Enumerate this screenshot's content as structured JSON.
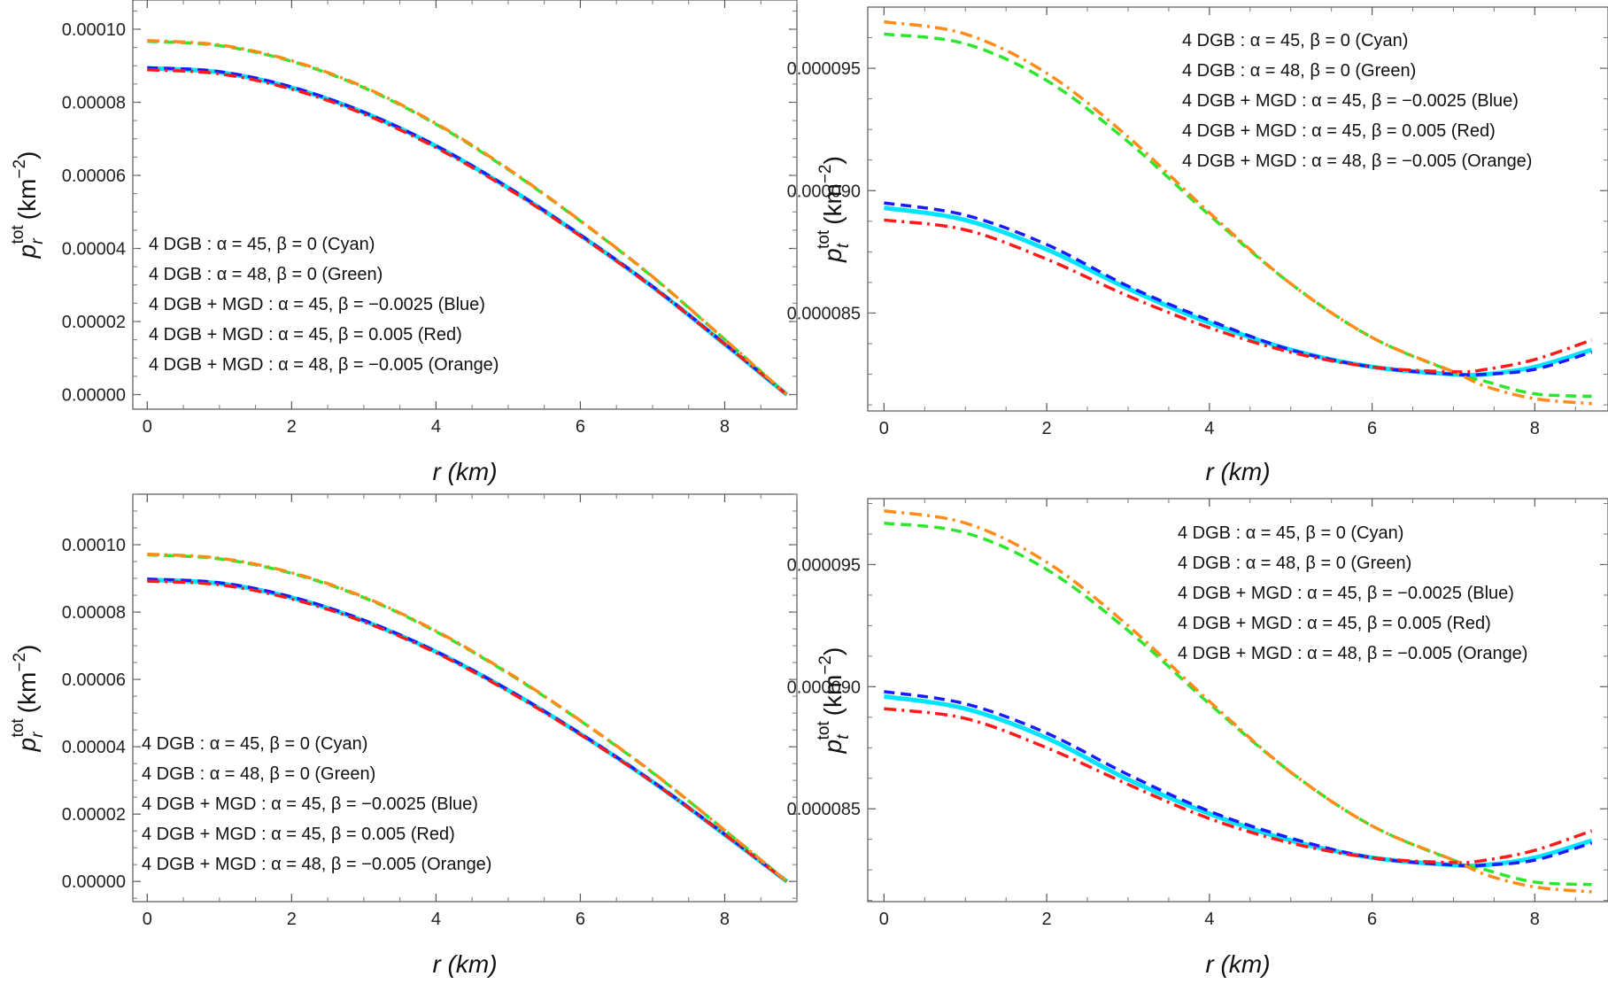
{
  "chart_data": [
    {
      "type": "line",
      "panel": "top-left",
      "xlabel": "r (km)",
      "ylabel": "p_r^tot (km^-2)",
      "xlim": [
        -0.2,
        9.0
      ],
      "ylim": [
        -4e-06,
        0.000108
      ],
      "xticks": [
        0,
        2,
        4,
        6,
        8
      ],
      "xtick_labels": [
        "0",
        "2",
        "4",
        "6",
        "8"
      ],
      "yticks": [
        0,
        2e-05,
        4e-05,
        6e-05,
        8e-05,
        0.0001
      ],
      "ytick_labels": [
        "0.00000",
        "0.00002",
        "0.00004",
        "0.00006",
        "0.00008",
        "0.00010"
      ],
      "legend_placement": "bottom-left",
      "legend": [
        "4 DGB : α = 45,  β = 0 (Cyan)",
        "4 DGB : α = 48,  β = 0 (Green)",
        "4 DGB + MGD : α = 45,  β = −0.0025 (Blue)",
        "4 DGB + MGD : α = 45,  β = 0.005 (Red)",
        "4 DGB + MGD : α = 48,  β = −0.005 (Orange)"
      ],
      "x": [
        0,
        1,
        2,
        3,
        4,
        5,
        6,
        7,
        8,
        8.86
      ],
      "series": [
        {
          "color": "#00e5ff",
          "style": "solid",
          "values": [
            8.93e-05,
            8.82e-05,
            8.4e-05,
            7.72e-05,
            6.8e-05,
            5.66e-05,
            4.36e-05,
            2.95e-05,
            1.38e-05,
            0.0
          ]
        },
        {
          "color": "#2ee62e",
          "style": "dashed",
          "values": [
            9.67e-05,
            9.55e-05,
            9.12e-05,
            8.4e-05,
            7.4e-05,
            6.16e-05,
            4.75e-05,
            3.22e-05,
            1.51e-05,
            0.0
          ]
        },
        {
          "color": "#1a1aff",
          "style": "dashed",
          "values": [
            8.95e-05,
            8.84e-05,
            8.42e-05,
            7.73e-05,
            6.81e-05,
            5.67e-05,
            4.37e-05,
            2.96e-05,
            1.39e-05,
            0.0
          ]
        },
        {
          "color": "#ff1a1a",
          "style": "dashdot",
          "values": [
            8.89e-05,
            8.78e-05,
            8.36e-05,
            7.68e-05,
            6.76e-05,
            5.63e-05,
            4.34e-05,
            2.94e-05,
            1.38e-05,
            0.0
          ]
        },
        {
          "color": "#ff8c1a",
          "style": "dashdot",
          "values": [
            9.69e-05,
            9.57e-05,
            9.14e-05,
            8.42e-05,
            7.42e-05,
            6.18e-05,
            4.76e-05,
            3.23e-05,
            1.51e-05,
            0.0
          ]
        }
      ]
    },
    {
      "type": "line",
      "panel": "top-right",
      "xlabel": "r (km)",
      "ylabel": "p_t^tot (km^-2)",
      "xlim": [
        -0.2,
        8.9
      ],
      "ylim": [
        8.1e-05,
        9.75e-05
      ],
      "xticks": [
        0,
        2,
        4,
        6,
        8
      ],
      "xtick_labels": [
        "0",
        "2",
        "4",
        "6",
        "8"
      ],
      "yticks": [
        8.5e-05,
        9e-05,
        9.5e-05
      ],
      "ytick_labels": [
        "0.000085",
        "0.000090",
        "0.000095"
      ],
      "legend_placement": "top-right",
      "legend": [
        "4 DGB : α = 45,  β = 0 (Cyan)",
        "4 DGB : α = 48,  β = 0 (Green)",
        "4 DGB + MGD : α = 45,  β = −0.0025 (Blue)",
        "4 DGB + MGD : α = 45,  β = 0.005 (Red)",
        "4 DGB + MGD : α = 48,  β = −0.005 (Orange)"
      ],
      "x": [
        0,
        1,
        2,
        3,
        4,
        5,
        6,
        7,
        7.4,
        8,
        8.7
      ],
      "series": [
        {
          "color": "#00e5ff",
          "style": "solid",
          "values": [
            8.93e-05,
            8.88e-05,
            8.76e-05,
            8.6e-05,
            8.46e-05,
            8.35e-05,
            8.28e-05,
            8.25e-05,
            8.25e-05,
            8.28e-05,
            8.35e-05
          ]
        },
        {
          "color": "#2ee62e",
          "style": "dashed",
          "values": [
            9.64e-05,
            9.6e-05,
            9.45e-05,
            9.2e-05,
            8.9e-05,
            8.62e-05,
            8.4e-05,
            8.26e-05,
            8.22e-05,
            8.17e-05,
            8.16e-05
          ]
        },
        {
          "color": "#1a1aff",
          "style": "dashed",
          "values": [
            8.95e-05,
            8.9e-05,
            8.78e-05,
            8.61e-05,
            8.47e-05,
            8.35e-05,
            8.28e-05,
            8.25e-05,
            8.25e-05,
            8.27e-05,
            8.34e-05
          ]
        },
        {
          "color": "#ff1a1a",
          "style": "dashdot",
          "values": [
            8.88e-05,
            8.84e-05,
            8.72e-05,
            8.57e-05,
            8.44e-05,
            8.34e-05,
            8.28e-05,
            8.26e-05,
            8.27e-05,
            8.31e-05,
            8.39e-05
          ]
        },
        {
          "color": "#ff8c1a",
          "style": "dashdot",
          "values": [
            9.69e-05,
            9.64e-05,
            9.48e-05,
            9.22e-05,
            8.91e-05,
            8.62e-05,
            8.4e-05,
            8.26e-05,
            8.2e-05,
            8.15e-05,
            8.13e-05
          ]
        }
      ]
    },
    {
      "type": "line",
      "panel": "bottom-left",
      "xlabel": "r (km)",
      "ylabel": "p_r^tot (km^-2)",
      "xlim": [
        -0.2,
        9.0
      ],
      "ylim": [
        -6e-06,
        0.000115
      ],
      "xticks": [
        0,
        2,
        4,
        6,
        8
      ],
      "xtick_labels": [
        "0",
        "2",
        "4",
        "6",
        "8"
      ],
      "yticks": [
        0,
        2e-05,
        4e-05,
        6e-05,
        8e-05,
        0.0001
      ],
      "ytick_labels": [
        "0.00000",
        "0.00002",
        "0.00004",
        "0.00006",
        "0.00008",
        "0.00010"
      ],
      "legend_placement": "bottom-left",
      "legend": [
        "4 DGB : α = 45,  β = 0 (Cyan)",
        "4 DGB : α = 48,  β = 0 (Green)",
        "4 DGB + MGD : α = 45,  β = −0.0025 (Blue)",
        "4 DGB + MGD : α = 45,  β = 0.005 (Red)",
        "4 DGB + MGD : α = 48,  β = −0.005 (Orange)"
      ],
      "x": [
        0,
        1,
        2,
        3,
        4,
        5,
        6,
        7,
        8,
        8.86
      ],
      "series": [
        {
          "color": "#00e5ff",
          "style": "solid",
          "values": [
            8.96e-05,
            8.85e-05,
            8.43e-05,
            7.74e-05,
            6.82e-05,
            5.68e-05,
            4.38e-05,
            2.96e-05,
            1.39e-05,
            0.0
          ]
        },
        {
          "color": "#2ee62e",
          "style": "dashed",
          "values": [
            9.7e-05,
            9.58e-05,
            9.15e-05,
            8.43e-05,
            7.42e-05,
            6.18e-05,
            4.77e-05,
            3.23e-05,
            1.52e-05,
            0.0
          ]
        },
        {
          "color": "#1a1aff",
          "style": "dashed",
          "values": [
            8.98e-05,
            8.87e-05,
            8.45e-05,
            7.76e-05,
            6.83e-05,
            5.69e-05,
            4.39e-05,
            2.97e-05,
            1.4e-05,
            0.0
          ]
        },
        {
          "color": "#ff1a1a",
          "style": "dashdot",
          "values": [
            8.92e-05,
            8.81e-05,
            8.39e-05,
            7.71e-05,
            6.79e-05,
            5.65e-05,
            4.36e-05,
            2.95e-05,
            1.39e-05,
            0.0
          ]
        },
        {
          "color": "#ff8c1a",
          "style": "dashdot",
          "values": [
            9.72e-05,
            9.6e-05,
            9.17e-05,
            8.45e-05,
            7.44e-05,
            6.2e-05,
            4.78e-05,
            3.24e-05,
            1.52e-05,
            0.0
          ]
        }
      ]
    },
    {
      "type": "line",
      "panel": "bottom-right",
      "xlabel": "r (km)",
      "ylabel": "p_t^tot (km^-2)",
      "xlim": [
        -0.2,
        8.9
      ],
      "ylim": [
        8.12e-05,
        9.77e-05
      ],
      "xticks": [
        0,
        2,
        4,
        6,
        8
      ],
      "xtick_labels": [
        "0",
        "2",
        "4",
        "6",
        "8"
      ],
      "yticks": [
        8.5e-05,
        9e-05,
        9.5e-05
      ],
      "ytick_labels": [
        "0.000085",
        "0.000090",
        "0.000095"
      ],
      "legend_placement": "top-right",
      "legend": [
        "4 DGB : α = 45,  β = 0 (Cyan)",
        "4 DGB : α = 48,  β = 0 (Green)",
        "4 DGB + MGD : α = 45,  β = −0.0025 (Blue)",
        "4 DGB + MGD : α = 45,  β = 0.005 (Red)",
        "4 DGB + MGD : α = 48,  β = −0.005 (Orange)"
      ],
      "x": [
        0,
        1,
        2,
        3,
        4,
        5,
        6,
        7,
        7.4,
        8,
        8.7
      ],
      "series": [
        {
          "color": "#00e5ff",
          "style": "solid",
          "values": [
            8.96e-05,
            8.91e-05,
            8.79e-05,
            8.62e-05,
            8.48e-05,
            8.37e-05,
            8.3e-05,
            8.27e-05,
            8.27e-05,
            8.3e-05,
            8.37e-05
          ]
        },
        {
          "color": "#2ee62e",
          "style": "dashed",
          "values": [
            9.67e-05,
            9.63e-05,
            9.48e-05,
            9.23e-05,
            8.93e-05,
            8.65e-05,
            8.43e-05,
            8.29e-05,
            8.25e-05,
            8.2e-05,
            8.19e-05
          ]
        },
        {
          "color": "#1a1aff",
          "style": "dashed",
          "values": [
            8.98e-05,
            8.93e-05,
            8.81e-05,
            8.64e-05,
            8.49e-05,
            8.38e-05,
            8.3e-05,
            8.27e-05,
            8.27e-05,
            8.29e-05,
            8.36e-05
          ]
        },
        {
          "color": "#ff1a1a",
          "style": "dashdot",
          "values": [
            8.91e-05,
            8.87e-05,
            8.75e-05,
            8.6e-05,
            8.46e-05,
            8.36e-05,
            8.3e-05,
            8.28e-05,
            8.29e-05,
            8.33e-05,
            8.41e-05
          ]
        },
        {
          "color": "#ff8c1a",
          "style": "dashdot",
          "values": [
            9.72e-05,
            9.67e-05,
            9.51e-05,
            9.25e-05,
            8.94e-05,
            8.65e-05,
            8.43e-05,
            8.29e-05,
            8.23e-05,
            8.18e-05,
            8.16e-05
          ]
        }
      ]
    }
  ]
}
